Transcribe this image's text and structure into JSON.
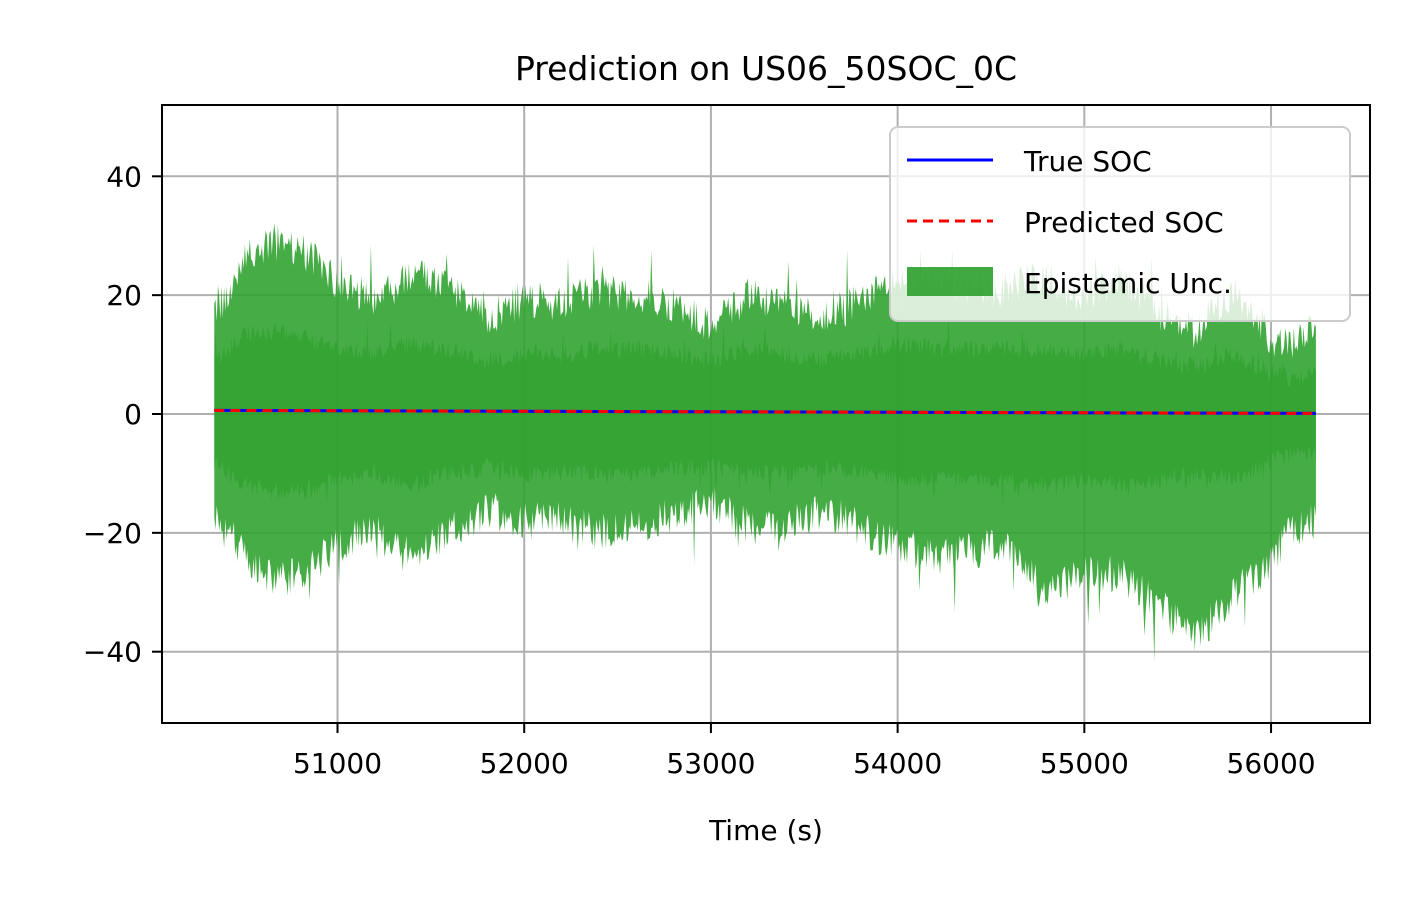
{
  "chart_data": {
    "type": "area",
    "title": "Prediction on US06_50SOC_0C",
    "xlabel": "Time (s)",
    "ylabel": "",
    "xlim": [
      50060,
      56530
    ],
    "ylim": [
      -52,
      52
    ],
    "x_ticks": [
      51000,
      52000,
      53000,
      54000,
      55000,
      56000
    ],
    "x_tick_labels": [
      "51000",
      "52000",
      "53000",
      "54000",
      "55000",
      "56000"
    ],
    "y_ticks": [
      -40,
      -20,
      0,
      20,
      40
    ],
    "y_tick_labels": [
      "−40",
      "−20",
      "0",
      "20",
      "40"
    ],
    "grid": true,
    "legend_position": "top-right",
    "legend": [
      {
        "label": "True SOC",
        "color": "#0000ff",
        "style": "solid"
      },
      {
        "label": "Predicted SOC",
        "color": "#ff0000",
        "style": "dashed"
      },
      {
        "label": "Epistemic Unc.",
        "color": "#2ca02c",
        "style": "fill"
      }
    ],
    "series": [
      {
        "name": "True SOC",
        "color": "#0000ff",
        "x": [
          50340,
          56240
        ],
        "y": [
          0.6,
          0.1
        ]
      },
      {
        "name": "Predicted SOC",
        "color": "#ff0000",
        "x": [
          50340,
          56240
        ],
        "y": [
          0.6,
          0.1
        ]
      },
      {
        "name": "Epistemic Unc.",
        "color": "#2ca02c",
        "x": [
          50340,
          50420,
          50500,
          50650,
          50800,
          51000,
          51200,
          51400,
          51600,
          51800,
          52000,
          52200,
          52400,
          52600,
          52800,
          53000,
          53200,
          53400,
          53600,
          53800,
          54000,
          54200,
          54400,
          54600,
          54800,
          55000,
          55200,
          55400,
          55600,
          55800,
          56000,
          56100,
          56240
        ],
        "upper_outer": [
          18,
          20,
          26,
          29,
          28,
          22,
          19,
          24,
          21,
          16,
          19,
          19,
          21,
          20,
          18,
          15,
          20,
          19,
          16,
          19,
          23,
          22,
          21,
          21,
          23,
          19,
          23,
          17,
          14,
          21,
          13,
          11,
          15
        ],
        "lower_outer": [
          -17,
          -19,
          -24,
          -28,
          -27,
          -22,
          -20,
          -24,
          -20,
          -16,
          -18,
          -18,
          -20,
          -19,
          -17,
          -15,
          -19,
          -19,
          -16,
          -19,
          -22,
          -24,
          -23,
          -22,
          -30,
          -27,
          -27,
          -32,
          -38,
          -30,
          -25,
          -20,
          -18
        ],
        "upper_inner": [
          9,
          11,
          13,
          14,
          13,
          11,
          10,
          12,
          11,
          9,
          10,
          10,
          11,
          11,
          10,
          9,
          11,
          10,
          9,
          10,
          12,
          11,
          11,
          11,
          11,
          10,
          11,
          9,
          8,
          10,
          7,
          6,
          7
        ],
        "lower_inner": [
          -8,
          -10,
          -12,
          -13,
          -13,
          -11,
          -10,
          -12,
          -10,
          -9,
          -10,
          -10,
          -10,
          -10,
          -9,
          -9,
          -10,
          -10,
          -9,
          -10,
          -11,
          -11,
          -11,
          -11,
          -12,
          -11,
          -12,
          -11,
          -10,
          -11,
          -8,
          -7,
          -7
        ]
      }
    ]
  }
}
